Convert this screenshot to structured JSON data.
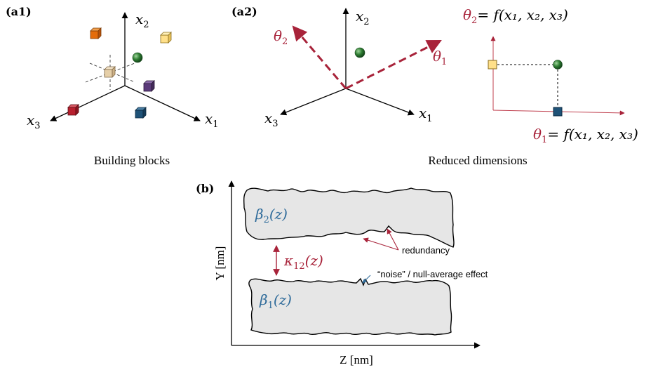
{
  "panel_a1": {
    "tag": "(a1)",
    "axis_x1": "x",
    "axis_x1_sub": "1",
    "axis_x2": "x",
    "axis_x2_sub": "2",
    "axis_x3": "x",
    "axis_x3_sub": "3",
    "caption": "Building blocks",
    "block_colors": {
      "orange": "#e46c0a",
      "yellow": "#ffe08a",
      "green": "#2e7d32",
      "beige": "#e6cfa8",
      "purple": "#5b3a7a",
      "red": "#b8202e",
      "blue": "#1f5277"
    }
  },
  "panel_a2": {
    "tag": "(a2)",
    "axis_x1": "x",
    "axis_x1_sub": "1",
    "axis_x2": "x",
    "axis_x2_sub": "2",
    "axis_x3": "x",
    "axis_x3_sub": "3",
    "theta1": "θ",
    "theta1_sub": "1",
    "theta2": "θ",
    "theta2_sub": "2",
    "theta2_eq_lhs": "θ",
    "theta2_eq_sub": "2",
    "theta2_eq_rhs": "= f(x₁, x₂, x₃)",
    "theta1_eq_lhs": "θ",
    "theta1_eq_sub": "1",
    "theta1_eq_rhs": "= f(x₁, x₂, x₃)",
    "caption": "Reduced dimensions",
    "accent_color": "#a8233a"
  },
  "panel_b": {
    "tag": "(b)",
    "ylabel": "Y [nm]",
    "xlabel": "Z [nm]",
    "beta2": "β",
    "beta2_sub": "2",
    "beta2_arg": "(z)",
    "beta1": "β",
    "beta1_sub": "1",
    "beta1_arg": "(z)",
    "kappa": "κ",
    "kappa_sub": "12",
    "kappa_arg": "(z)",
    "redundancy": "redundancy",
    "noise": "“noise” / null-average effect",
    "label_color": "#2f6b9a",
    "shape_fill": "#e6e6e6"
  }
}
